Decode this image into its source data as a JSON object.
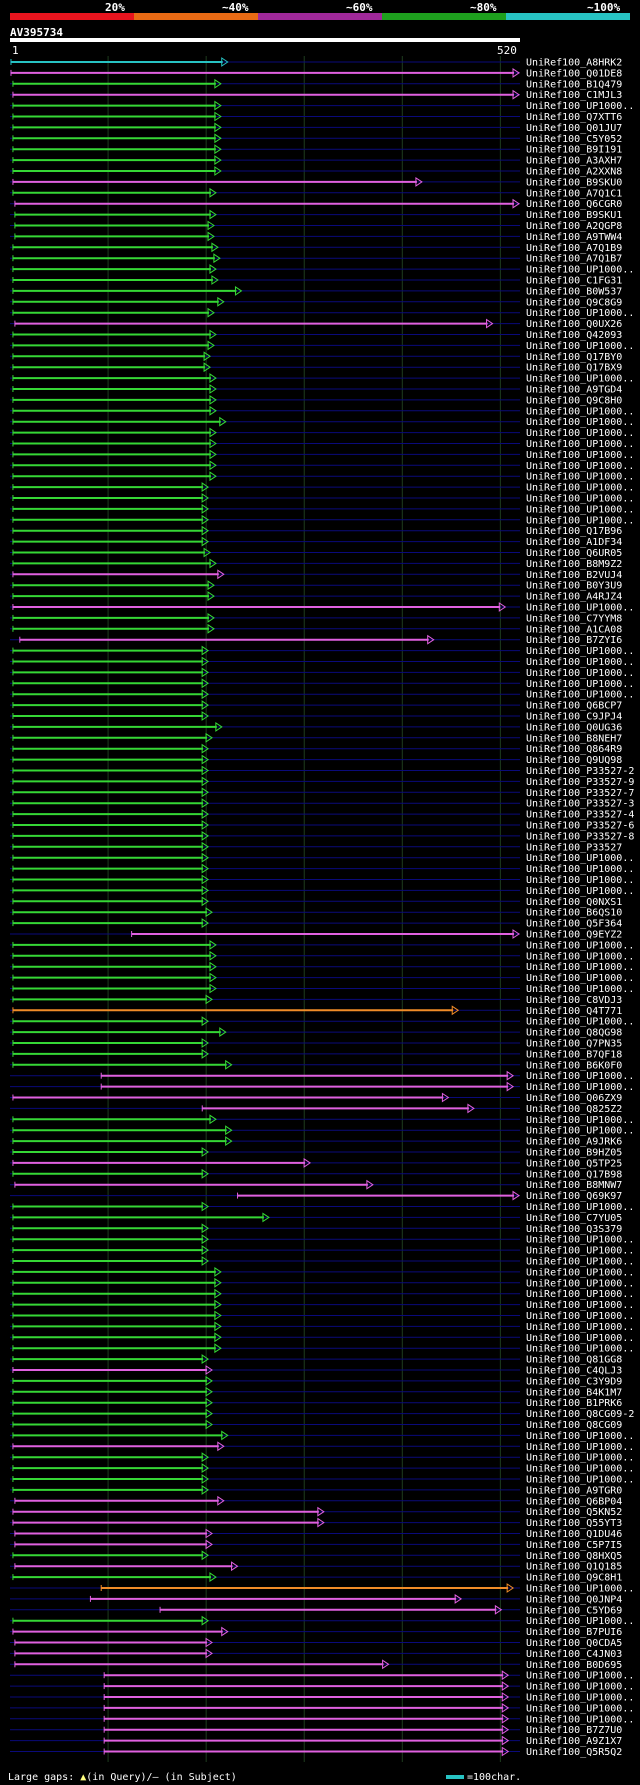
{
  "legend": [
    {
      "label": "20%",
      "color": "#e8141e"
    },
    {
      "label": "~40%",
      "color": "#e86a14"
    },
    {
      "label": "~60%",
      "color": "#a0289a"
    },
    {
      "label": "~80%",
      "color": "#1ea01e"
    },
    {
      "label": "~100%",
      "color": "#27c3c3"
    }
  ],
  "query": {
    "name": "AV395734",
    "start": "1",
    "end": "520"
  },
  "colors": {
    "green": "#35d835",
    "magenta": "#e060e0",
    "orange": "#f08c28",
    "cyan": "#27c3c3",
    "marker": "#ffff80",
    "row": "#0a0a7a",
    "grid": "#1e3c1e"
  },
  "chart_data": {
    "type": "table",
    "query_length": 520,
    "hits": [
      {
        "name": "UniRef100_A8HRK2",
        "s": 1,
        "e": 222,
        "c": "cyan"
      },
      {
        "name": "UniRef100_Q01DE8",
        "s": 1,
        "e": 519,
        "c": "magenta"
      },
      {
        "name": "UniRef100_B1Q479",
        "s": 3,
        "e": 215,
        "c": "green"
      },
      {
        "name": "UniRef100_C1MJL3",
        "s": 3,
        "e": 519,
        "c": "magenta"
      },
      {
        "name": "UniRef100_UP1000..",
        "s": 3,
        "e": 215,
        "c": "green"
      },
      {
        "name": "UniRef100_Q7XTT6",
        "s": 3,
        "e": 215,
        "c": "green"
      },
      {
        "name": "UniRef100_Q01JU7",
        "s": 3,
        "e": 215,
        "c": "green"
      },
      {
        "name": "UniRef100_C5Y052",
        "s": 3,
        "e": 215,
        "c": "green"
      },
      {
        "name": "UniRef100_B9I191",
        "s": 3,
        "e": 215,
        "c": "green"
      },
      {
        "name": "UniRef100_A3AXH7",
        "s": 3,
        "e": 215,
        "c": "green"
      },
      {
        "name": "UniRef100_A2XXN8",
        "s": 3,
        "e": 215,
        "c": "green"
      },
      {
        "name": "UniRef100_B9SKU0",
        "s": 3,
        "e": 420,
        "c": "magenta"
      },
      {
        "name": "UniRef100_A7Q1C1",
        "s": 3,
        "e": 210,
        "c": "green"
      },
      {
        "name": "UniRef100_Q6CGR0",
        "s": 5,
        "e": 519,
        "c": "magenta"
      },
      {
        "name": "UniRef100_B9SKU1",
        "s": 5,
        "e": 210,
        "c": "green"
      },
      {
        "name": "UniRef100_A2QGP8",
        "s": 5,
        "e": 208,
        "c": "green"
      },
      {
        "name": "UniRef100_A9TWW4",
        "s": 5,
        "e": 208,
        "c": "green"
      },
      {
        "name": "UniRef100_A7Q1B9",
        "s": 3,
        "e": 212,
        "c": "green"
      },
      {
        "name": "UniRef100_A7Q1B7",
        "s": 3,
        "e": 214,
        "c": "green"
      },
      {
        "name": "UniRef100_UP1000..",
        "s": 3,
        "e": 210,
        "c": "green"
      },
      {
        "name": "UniRef100_C1FG31",
        "s": 3,
        "e": 212,
        "c": "green"
      },
      {
        "name": "UniRef100_B0W537",
        "s": 3,
        "e": 236,
        "c": "green"
      },
      {
        "name": "UniRef100_Q9C8G9",
        "s": 3,
        "e": 218,
        "c": "green"
      },
      {
        "name": "UniRef100_UP1000..",
        "s": 3,
        "e": 208,
        "c": "green"
      },
      {
        "name": "UniRef100_Q0UX26",
        "s": 5,
        "e": 492,
        "c": "magenta"
      },
      {
        "name": "UniRef100_Q42093",
        "s": 3,
        "e": 210,
        "c": "green"
      },
      {
        "name": "UniRef100_UP1000..",
        "s": 3,
        "e": 208,
        "c": "green"
      },
      {
        "name": "UniRef100_Q17BY0",
        "s": 3,
        "e": 204,
        "c": "green"
      },
      {
        "name": "UniRef100_Q17BX9",
        "s": 3,
        "e": 204,
        "c": "green"
      },
      {
        "name": "UniRef100_UP1000..",
        "s": 3,
        "e": 210,
        "c": "green"
      },
      {
        "name": "UniRef100_A9TGD4",
        "s": 3,
        "e": 210,
        "c": "green"
      },
      {
        "name": "UniRef100_Q9C8H0",
        "s": 3,
        "e": 210,
        "c": "green"
      },
      {
        "name": "UniRef100_UP1000..",
        "s": 3,
        "e": 210,
        "c": "green"
      },
      {
        "name": "UniRef100_UP1000..",
        "s": 3,
        "e": 220,
        "c": "green"
      },
      {
        "name": "UniRef100_UP1000..",
        "s": 3,
        "e": 210,
        "c": "green"
      },
      {
        "name": "UniRef100_UP1000..",
        "s": 3,
        "e": 210,
        "c": "green"
      },
      {
        "name": "UniRef100_UP1000..",
        "s": 3,
        "e": 210,
        "c": "green"
      },
      {
        "name": "UniRef100_UP1000..",
        "s": 3,
        "e": 210,
        "c": "green"
      },
      {
        "name": "UniRef100_UP1000..",
        "s": 3,
        "e": 210,
        "c": "green"
      },
      {
        "name": "UniRef100_UP1000..",
        "s": 3,
        "e": 202,
        "c": "green"
      },
      {
        "name": "UniRef100_UP1000..",
        "s": 3,
        "e": 202,
        "c": "green"
      },
      {
        "name": "UniRef100_UP1000..",
        "s": 3,
        "e": 202,
        "c": "green"
      },
      {
        "name": "UniRef100_UP1000..",
        "s": 3,
        "e": 202,
        "c": "green"
      },
      {
        "name": "UniRef100_Q17B96",
        "s": 3,
        "e": 202,
        "c": "green"
      },
      {
        "name": "UniRef100_A1DF34",
        "s": 3,
        "e": 202,
        "c": "green"
      },
      {
        "name": "UniRef100_Q6UR05",
        "s": 3,
        "e": 204,
        "c": "green"
      },
      {
        "name": "UniRef100_B8M9Z2",
        "s": 3,
        "e": 210,
        "c": "green"
      },
      {
        "name": "UniRef100_B2VUJ4",
        "s": 3,
        "e": 218,
        "c": "magenta"
      },
      {
        "name": "UniRef100_B0Y3U9",
        "s": 3,
        "e": 208,
        "c": "green"
      },
      {
        "name": "UniRef100_A4RJZ4",
        "s": 3,
        "e": 208,
        "c": "green"
      },
      {
        "name": "UniRef100_UP1000..",
        "s": 3,
        "e": 505,
        "c": "magenta"
      },
      {
        "name": "UniRef100_C7YYM8",
        "s": 3,
        "e": 208,
        "c": "green"
      },
      {
        "name": "UniRef100_A1CA08",
        "s": 3,
        "e": 208,
        "c": "green"
      },
      {
        "name": "UniRef100_B7ZYI6",
        "s": 10,
        "e": 432,
        "c": "magenta"
      },
      {
        "name": "UniRef100_UP1000..",
        "s": 3,
        "e": 202,
        "c": "green"
      },
      {
        "name": "UniRef100_UP1000..",
        "s": 3,
        "e": 202,
        "c": "green"
      },
      {
        "name": "UniRef100_UP1000..",
        "s": 3,
        "e": 202,
        "c": "green"
      },
      {
        "name": "UniRef100_UP1000..",
        "s": 3,
        "e": 202,
        "c": "green"
      },
      {
        "name": "UniRef100_UP1000..",
        "s": 3,
        "e": 202,
        "c": "green"
      },
      {
        "name": "UniRef100_Q6BCP7",
        "s": 3,
        "e": 202,
        "c": "green"
      },
      {
        "name": "UniRef100_C9JPJ4",
        "s": 3,
        "e": 202,
        "c": "green"
      },
      {
        "name": "UniRef100_Q0UG36",
        "s": 3,
        "e": 216,
        "c": "green"
      },
      {
        "name": "UniRef100_B8NEH7",
        "s": 3,
        "e": 206,
        "c": "green"
      },
      {
        "name": "UniRef100_Q864R9",
        "s": 3,
        "e": 202,
        "c": "green"
      },
      {
        "name": "UniRef100_Q9UQ98",
        "s": 3,
        "e": 202,
        "c": "green"
      },
      {
        "name": "UniRef100_P33527-2",
        "s": 3,
        "e": 202,
        "c": "green"
      },
      {
        "name": "UniRef100_P33527-9",
        "s": 3,
        "e": 202,
        "c": "green"
      },
      {
        "name": "UniRef100_P33527-7",
        "s": 3,
        "e": 202,
        "c": "green"
      },
      {
        "name": "UniRef100_P33527-3",
        "s": 3,
        "e": 202,
        "c": "green"
      },
      {
        "name": "UniRef100_P33527-4",
        "s": 3,
        "e": 202,
        "c": "green"
      },
      {
        "name": "UniRef100_P33527-6",
        "s": 3,
        "e": 202,
        "c": "green"
      },
      {
        "name": "UniRef100_P33527-8",
        "s": 3,
        "e": 202,
        "c": "green"
      },
      {
        "name": "UniRef100_P33527",
        "s": 3,
        "e": 202,
        "c": "green"
      },
      {
        "name": "UniRef100_UP1000..",
        "s": 3,
        "e": 202,
        "c": "green"
      },
      {
        "name": "UniRef100_UP1000..",
        "s": 3,
        "e": 202,
        "c": "green"
      },
      {
        "name": "UniRef100_UP1000..",
        "s": 3,
        "e": 202,
        "c": "green"
      },
      {
        "name": "UniRef100_UP1000..",
        "s": 3,
        "e": 202,
        "c": "green"
      },
      {
        "name": "UniRef100_Q0NXS1",
        "s": 3,
        "e": 202,
        "c": "green"
      },
      {
        "name": "UniRef100_B6QS10",
        "s": 3,
        "e": 206,
        "c": "green"
      },
      {
        "name": "UniRef100_Q5F364",
        "s": 3,
        "e": 202,
        "c": "green"
      },
      {
        "name": "UniRef100_Q9EYZ2",
        "s": 124,
        "e": 519,
        "c": "magenta"
      },
      {
        "name": "UniRef100_UP1000..",
        "s": 3,
        "e": 210,
        "c": "green"
      },
      {
        "name": "UniRef100_UP1000..",
        "s": 3,
        "e": 210,
        "c": "green"
      },
      {
        "name": "UniRef100_UP1000..",
        "s": 3,
        "e": 210,
        "c": "green"
      },
      {
        "name": "UniRef100_UP1000..",
        "s": 3,
        "e": 210,
        "c": "green"
      },
      {
        "name": "UniRef100_UP1000..",
        "s": 3,
        "e": 210,
        "c": "green"
      },
      {
        "name": "UniRef100_C8VDJ3",
        "s": 3,
        "e": 206,
        "c": "green"
      },
      {
        "name": "UniRef100_Q4T771",
        "s": 3,
        "e": 457,
        "c": "orange"
      },
      {
        "name": "UniRef100_UP1000..",
        "s": 3,
        "e": 202,
        "c": "green"
      },
      {
        "name": "UniRef100_Q8QG98",
        "s": 3,
        "e": 220,
        "c": "green"
      },
      {
        "name": "UniRef100_Q7PN35",
        "s": 3,
        "e": 202,
        "c": "green"
      },
      {
        "name": "UniRef100_B7QF18",
        "s": 3,
        "e": 202,
        "c": "green"
      },
      {
        "name": "UniRef100_B6K0F0",
        "s": 3,
        "e": 226,
        "c": "green"
      },
      {
        "name": "UniRef100_UP1000..",
        "s": 93,
        "e": 513,
        "c": "magenta"
      },
      {
        "name": "UniRef100_UP1000..",
        "s": 93,
        "e": 513,
        "c": "magenta"
      },
      {
        "name": "UniRef100_Q06ZX9",
        "s": 3,
        "e": 447,
        "c": "magenta"
      },
      {
        "name": "UniRef100_Q825Z2",
        "s": 196,
        "e": 473,
        "c": "magenta"
      },
      {
        "name": "UniRef100_UP1000..",
        "s": 3,
        "e": 210,
        "c": "green"
      },
      {
        "name": "UniRef100_UP1000..",
        "s": 3,
        "e": 226,
        "c": "green"
      },
      {
        "name": "UniRef100_A9JRK6",
        "s": 3,
        "e": 226,
        "c": "green"
      },
      {
        "name": "UniRef100_B9HZ05",
        "s": 3,
        "e": 202,
        "c": "green"
      },
      {
        "name": "UniRef100_Q5TP25",
        "s": 3,
        "e": 306,
        "c": "magenta"
      },
      {
        "name": "UniRef100_Q17B98",
        "s": 3,
        "e": 202,
        "c": "green"
      },
      {
        "name": "UniRef100_B8MNW7",
        "s": 5,
        "e": 370,
        "c": "magenta"
      },
      {
        "name": "UniRef100_Q69K97",
        "s": 232,
        "e": 519,
        "c": "magenta"
      },
      {
        "name": "UniRef100_UP1000..",
        "s": 3,
        "e": 202,
        "c": "green"
      },
      {
        "name": "UniRef100_C7YU05",
        "s": 3,
        "e": 264,
        "c": "green"
      },
      {
        "name": "UniRef100_Q3S379",
        "s": 3,
        "e": 202,
        "c": "green"
      },
      {
        "name": "UniRef100_UP1000..",
        "s": 3,
        "e": 202,
        "c": "green"
      },
      {
        "name": "UniRef100_UP1000..",
        "s": 3,
        "e": 202,
        "c": "green"
      },
      {
        "name": "UniRef100_UP1000..",
        "s": 3,
        "e": 202,
        "c": "green"
      },
      {
        "name": "UniRef100_UP1000..",
        "s": 3,
        "e": 215,
        "c": "green"
      },
      {
        "name": "UniRef100_UP1000..",
        "s": 3,
        "e": 215,
        "c": "green"
      },
      {
        "name": "UniRef100_UP1000..",
        "s": 3,
        "e": 215,
        "c": "green"
      },
      {
        "name": "UniRef100_UP1000..",
        "s": 3,
        "e": 215,
        "c": "green"
      },
      {
        "name": "UniRef100_UP1000..",
        "s": 3,
        "e": 215,
        "c": "green"
      },
      {
        "name": "UniRef100_UP1000..",
        "s": 3,
        "e": 215,
        "c": "green"
      },
      {
        "name": "UniRef100_UP1000..",
        "s": 3,
        "e": 215,
        "c": "green"
      },
      {
        "name": "UniRef100_UP1000..",
        "s": 3,
        "e": 215,
        "c": "green"
      },
      {
        "name": "UniRef100_Q81GG8",
        "s": 3,
        "e": 202,
        "c": "green"
      },
      {
        "name": "UniRef100_C4QLJ3",
        "s": 3,
        "e": 206,
        "c": "magenta"
      },
      {
        "name": "UniRef100_C3Y9D9",
        "s": 3,
        "e": 206,
        "c": "green"
      },
      {
        "name": "UniRef100_B4K1M7",
        "s": 3,
        "e": 206,
        "c": "green"
      },
      {
        "name": "UniRef100_B1PRK6",
        "s": 3,
        "e": 206,
        "c": "green"
      },
      {
        "name": "UniRef100_Q8CG09-2",
        "s": 3,
        "e": 206,
        "c": "green"
      },
      {
        "name": "UniRef100_Q8CG09",
        "s": 3,
        "e": 206,
        "c": "green"
      },
      {
        "name": "UniRef100_UP1000..",
        "s": 3,
        "e": 222,
        "c": "green"
      },
      {
        "name": "UniRef100_UP1000..",
        "s": 3,
        "e": 218,
        "c": "magenta"
      },
      {
        "name": "UniRef100_UP1000..",
        "s": 3,
        "e": 202,
        "c": "green"
      },
      {
        "name": "UniRef100_UP1000..",
        "s": 3,
        "e": 202,
        "c": "green"
      },
      {
        "name": "UniRef100_UP1000..",
        "s": 3,
        "e": 202,
        "c": "green"
      },
      {
        "name": "UniRef100_A9TGR0",
        "s": 3,
        "e": 202,
        "c": "green"
      },
      {
        "name": "UniRef100_Q6BP04",
        "s": 5,
        "e": 218,
        "c": "magenta"
      },
      {
        "name": "UniRef100_Q5KN52",
        "s": 3,
        "e": 320,
        "c": "magenta"
      },
      {
        "name": "UniRef100_Q55YT3",
        "s": 3,
        "e": 320,
        "c": "magenta"
      },
      {
        "name": "UniRef100_Q1DU46",
        "s": 5,
        "e": 206,
        "c": "magenta"
      },
      {
        "name": "UniRef100_C5P7I5",
        "s": 5,
        "e": 206,
        "c": "magenta"
      },
      {
        "name": "UniRef100_Q8HXQ5",
        "s": 3,
        "e": 202,
        "c": "green"
      },
      {
        "name": "UniRef100_Q1Q185",
        "s": 5,
        "e": 232,
        "c": "magenta"
      },
      {
        "name": "UniRef100_Q9C8H1",
        "s": 3,
        "e": 210,
        "c": "green"
      },
      {
        "name": "UniRef100_UP1000..",
        "s": 93,
        "e": 513,
        "c": "orange"
      },
      {
        "name": "UniRef100_Q0JNP4",
        "s": 82,
        "e": 460,
        "c": "magenta"
      },
      {
        "name": "UniRef100_C5YD69",
        "s": 153,
        "e": 501,
        "c": "magenta"
      },
      {
        "name": "UniRef100_UP1000..",
        "s": 3,
        "e": 202,
        "c": "green"
      },
      {
        "name": "UniRef100_B7PUI6",
        "s": 3,
        "e": 222,
        "c": "magenta"
      },
      {
        "name": "UniRef100_Q0CDA5",
        "s": 5,
        "e": 206,
        "c": "magenta"
      },
      {
        "name": "UniRef100_C4JN03",
        "s": 5,
        "e": 206,
        "c": "magenta"
      },
      {
        "name": "UniRef100_B0D695",
        "s": 5,
        "e": 386,
        "c": "magenta"
      },
      {
        "name": "UniRef100_UP1000..",
        "s": 96,
        "e": 508,
        "c": "magenta"
      },
      {
        "name": "UniRef100_UP1000..",
        "s": 96,
        "e": 508,
        "c": "magenta"
      },
      {
        "name": "UniRef100_UP1000..",
        "s": 96,
        "e": 508,
        "c": "magenta"
      },
      {
        "name": "UniRef100_UP1000..",
        "s": 96,
        "e": 508,
        "c": "magenta"
      },
      {
        "name": "UniRef100_UP1000..",
        "s": 96,
        "e": 508,
        "c": "magenta"
      },
      {
        "name": "UniRef100_B7Z7U0",
        "s": 96,
        "e": 508,
        "c": "magenta"
      },
      {
        "name": "UniRef100_A9Z1X7",
        "s": 96,
        "e": 508,
        "c": "magenta"
      },
      {
        "name": "UniRef100_Q5R5Q2",
        "s": 96,
        "e": 508,
        "c": "magenta"
      }
    ]
  },
  "footer": {
    "prefix": "Large gaps: ",
    "tri": "▲",
    "query_text": "(in Query)",
    "subject_text": "/– (in Subject)",
    "scale_text": "=100char."
  }
}
